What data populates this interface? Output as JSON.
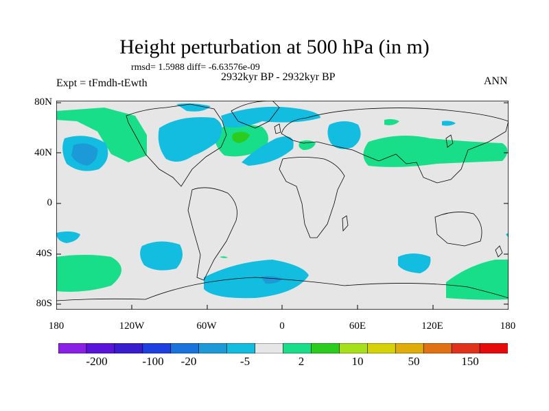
{
  "header": {
    "title": "Height perturbation at 500 hPa (in m)",
    "stats": "rmsd= 1.5988 diff= -6.63576e-09",
    "period": "2932kyr BP - 2932kyr BP",
    "expt": "Expt = tFmdh-tEwth",
    "season": "ANN"
  },
  "axes": {
    "lat_ticks": [
      "80N",
      "40N",
      "0",
      "40S",
      "80S"
    ],
    "lon_ticks": [
      "180",
      "120W",
      "60W",
      "0",
      "60E",
      "120E",
      "180"
    ]
  },
  "colorbar": {
    "colors": [
      "#8a1fe6",
      "#5a14d9",
      "#3a1ccf",
      "#1e3fe0",
      "#1873dc",
      "#1c9ad8",
      "#12bde0",
      "#e6e6e6",
      "#18de8a",
      "#2ccc1e",
      "#a6e01a",
      "#d6d20a",
      "#e0ac0a",
      "#e07214",
      "#e0321a",
      "#e60a0a"
    ],
    "labels": [
      "-200",
      "-100",
      "-20",
      "-5",
      "2",
      "10",
      "50",
      "150"
    ],
    "background": "#e6e6e6"
  },
  "map_data": {
    "projection": "cylindrical-equidistant",
    "lon_range": [
      -180,
      180
    ],
    "lat_range": [
      -90,
      90
    ],
    "coastline_color": "#000000"
  }
}
